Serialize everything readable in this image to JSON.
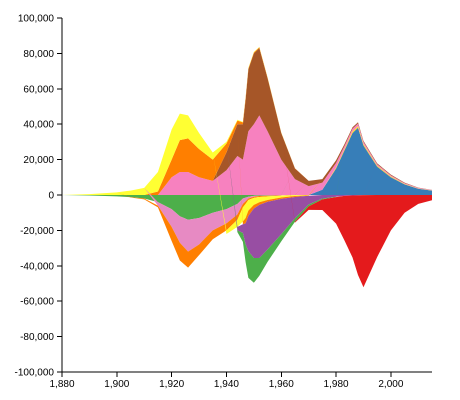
{
  "chart_data": {
    "type": "area",
    "stacked": "diverging",
    "title": "",
    "xlabel": "",
    "ylabel": "",
    "xlim": [
      1880,
      2015
    ],
    "ylim": [
      -100000,
      100000
    ],
    "x_ticks": [
      {
        "value": 1880,
        "label": "1,880"
      },
      {
        "value": 1900,
        "label": "1,900"
      },
      {
        "value": 1920,
        "label": "1,920"
      },
      {
        "value": 1940,
        "label": "1,940"
      },
      {
        "value": 1960,
        "label": "1,960"
      },
      {
        "value": 1980,
        "label": "1,980"
      },
      {
        "value": 2000,
        "label": "2,000"
      }
    ],
    "y_ticks": [
      {
        "value": 100000,
        "label": "100,000"
      },
      {
        "value": 80000,
        "label": "80,000"
      },
      {
        "value": 60000,
        "label": "60,000"
      },
      {
        "value": 40000,
        "label": "40,000"
      },
      {
        "value": 20000,
        "label": "20,000"
      },
      {
        "value": 0,
        "label": "0"
      },
      {
        "value": -20000,
        "label": "-20,000"
      },
      {
        "value": -40000,
        "label": "-40,000"
      },
      {
        "value": -60000,
        "label": "-60,000"
      },
      {
        "value": -80000,
        "label": "-80,000"
      },
      {
        "value": -100000,
        "label": "-100,000"
      }
    ],
    "x": [
      1880,
      1890,
      1900,
      1905,
      1910,
      1915,
      1920,
      1923,
      1926,
      1930,
      1935,
      1940,
      1944,
      1946,
      1947,
      1948,
      1950,
      1952,
      1955,
      1960,
      1965,
      1970,
      1975,
      1980,
      1983,
      1986,
      1988,
      1990,
      1995,
      2000,
      2005,
      2010,
      2015
    ],
    "series": [
      {
        "color": "#377eb8",
        "values": [
          0,
          0,
          0,
          0,
          0,
          0,
          0,
          0,
          0,
          0,
          0,
          0,
          0,
          0,
          0,
          0,
          0,
          0,
          0,
          0,
          0,
          0,
          3000,
          15000,
          25000,
          35000,
          38000,
          28000,
          16000,
          10000,
          6000,
          3500,
          2500
        ]
      },
      {
        "color": "#ffd92f",
        "values": [
          0,
          0,
          0,
          0,
          0,
          0,
          0,
          0,
          0,
          0,
          0,
          0,
          0,
          0,
          0,
          0,
          0,
          0,
          0,
          0,
          0,
          0,
          0,
          600,
          800,
          1000,
          1000,
          800,
          600,
          500,
          300,
          200,
          100
        ]
      },
      {
        "color": "#e41a1c",
        "values": [
          0,
          0,
          0,
          0,
          0,
          0,
          0,
          0,
          0,
          0,
          0,
          0,
          0,
          0,
          0,
          0,
          0,
          0,
          0,
          0,
          0,
          0,
          0,
          0,
          0,
          0,
          0,
          0,
          0,
          0,
          0,
          0,
          0
        ]
      },
      {
        "color": "#f781bf",
        "values": [
          0,
          0,
          0,
          0,
          0,
          0,
          10000,
          13000,
          13000,
          10000,
          8000,
          14000,
          22000,
          20000,
          28000,
          36000,
          40000,
          45000,
          36000,
          20000,
          9000,
          5000,
          4000,
          2500,
          1700,
          1500,
          1400,
          1200,
          800,
          600,
          400,
          300,
          200
        ]
      },
      {
        "color": "#a65628",
        "values": [
          0,
          0,
          0,
          0,
          0,
          0,
          0,
          0,
          0,
          0,
          0,
          10000,
          18000,
          20000,
          26000,
          35000,
          40000,
          38000,
          30000,
          15000,
          6000,
          3000,
          2000,
          1500,
          1000,
          800,
          700,
          600,
          500,
          400,
          300,
          200,
          100
        ]
      },
      {
        "color": "#ff7f00",
        "values": [
          0,
          0,
          0,
          0,
          0,
          2000,
          10000,
          18000,
          19000,
          16000,
          12000,
          5000,
          2000,
          1000,
          1000,
          500,
          500,
          500,
          300,
          200,
          100,
          0,
          0,
          0,
          0,
          0,
          0,
          0,
          0,
          0,
          0,
          0,
          0
        ]
      },
      {
        "color": "#ffff33",
        "values": [
          0,
          500,
          1500,
          2500,
          4000,
          11000,
          17000,
          15000,
          13000,
          9000,
          4000,
          1000,
          500,
          300,
          300,
          300,
          300,
          200,
          200,
          100,
          0,
          0,
          0,
          0,
          0,
          0,
          0,
          0,
          0,
          0,
          0,
          0,
          0
        ]
      },
      {
        "color": "#4daf4a",
        "values": [
          0,
          -300,
          -800,
          -1200,
          -2000,
          -4000,
          -8000,
          -12000,
          -14000,
          -13000,
          -10000,
          -8000,
          -5000,
          -2000,
          -1500,
          -1000,
          -500,
          -300,
          -200,
          -100,
          0,
          0,
          0,
          0,
          0,
          0,
          0,
          0,
          0,
          0,
          0,
          0,
          0
        ]
      },
      {
        "color": "#e78ac3",
        "values": [
          0,
          0,
          0,
          0,
          0,
          -2000,
          -10000,
          -15000,
          -18000,
          -15000,
          -10000,
          -8000,
          -6000,
          -3000,
          -2000,
          -1000,
          -500,
          -300,
          -200,
          -100,
          0,
          0,
          0,
          0,
          0,
          0,
          0,
          0,
          0,
          0,
          0,
          0,
          0
        ]
      },
      {
        "color": "#ff7f00",
        "values": [
          0,
          0,
          0,
          -200,
          -500,
          -1000,
          -8000,
          -10000,
          -9000,
          -6000,
          -5000,
          -4000,
          -3000,
          -2000,
          -1500,
          -800,
          -600,
          -500,
          -400,
          -200,
          -100,
          0,
          0,
          0,
          0,
          0,
          0,
          0,
          0,
          0,
          0,
          0,
          0
        ]
      },
      {
        "color": "#ffff33",
        "values": [
          0,
          0,
          0,
          0,
          0,
          0,
          0,
          0,
          0,
          0,
          0,
          -2000,
          -4000,
          -8000,
          -8000,
          -6000,
          -4000,
          -3000,
          -2000,
          -1000,
          -500,
          -200,
          0,
          0,
          0,
          0,
          0,
          0,
          0,
          0,
          0,
          0,
          0
        ]
      },
      {
        "color": "#ff7f00",
        "values": [
          0,
          0,
          0,
          0,
          0,
          0,
          0,
          0,
          0,
          0,
          0,
          0,
          0,
          -1500,
          -3000,
          -3000,
          -2000,
          -1500,
          -1000,
          -800,
          -500,
          -200,
          0,
          0,
          0,
          0,
          0,
          0,
          0,
          0,
          0,
          0,
          0
        ]
      },
      {
        "color": "#984ea3",
        "values": [
          0,
          0,
          0,
          0,
          0,
          0,
          0,
          0,
          0,
          0,
          0,
          0,
          -2000,
          -5000,
          -12000,
          -20000,
          -28000,
          -30000,
          -27000,
          -20000,
          -12000,
          -5000,
          -2000,
          -1000,
          -500,
          -300,
          -200,
          -100,
          0,
          0,
          0,
          0,
          0
        ]
      },
      {
        "color": "#4daf4a",
        "values": [
          0,
          0,
          0,
          0,
          0,
          0,
          0,
          0,
          0,
          0,
          0,
          0,
          -1000,
          -5000,
          -10000,
          -15000,
          -14000,
          -10000,
          -7000,
          -4000,
          -2000,
          -1000,
          -500,
          -200,
          0,
          0,
          0,
          0,
          0,
          0,
          0,
          0,
          0
        ]
      },
      {
        "color": "#e41a1c",
        "values": [
          0,
          0,
          0,
          0,
          0,
          0,
          0,
          0,
          0,
          0,
          0,
          0,
          0,
          0,
          0,
          0,
          0,
          0,
          0,
          0,
          -500,
          -2000,
          -6000,
          -15000,
          -25000,
          -35000,
          -45000,
          -52000,
          -35000,
          -20000,
          -10000,
          -5000,
          -3000
        ]
      }
    ]
  }
}
